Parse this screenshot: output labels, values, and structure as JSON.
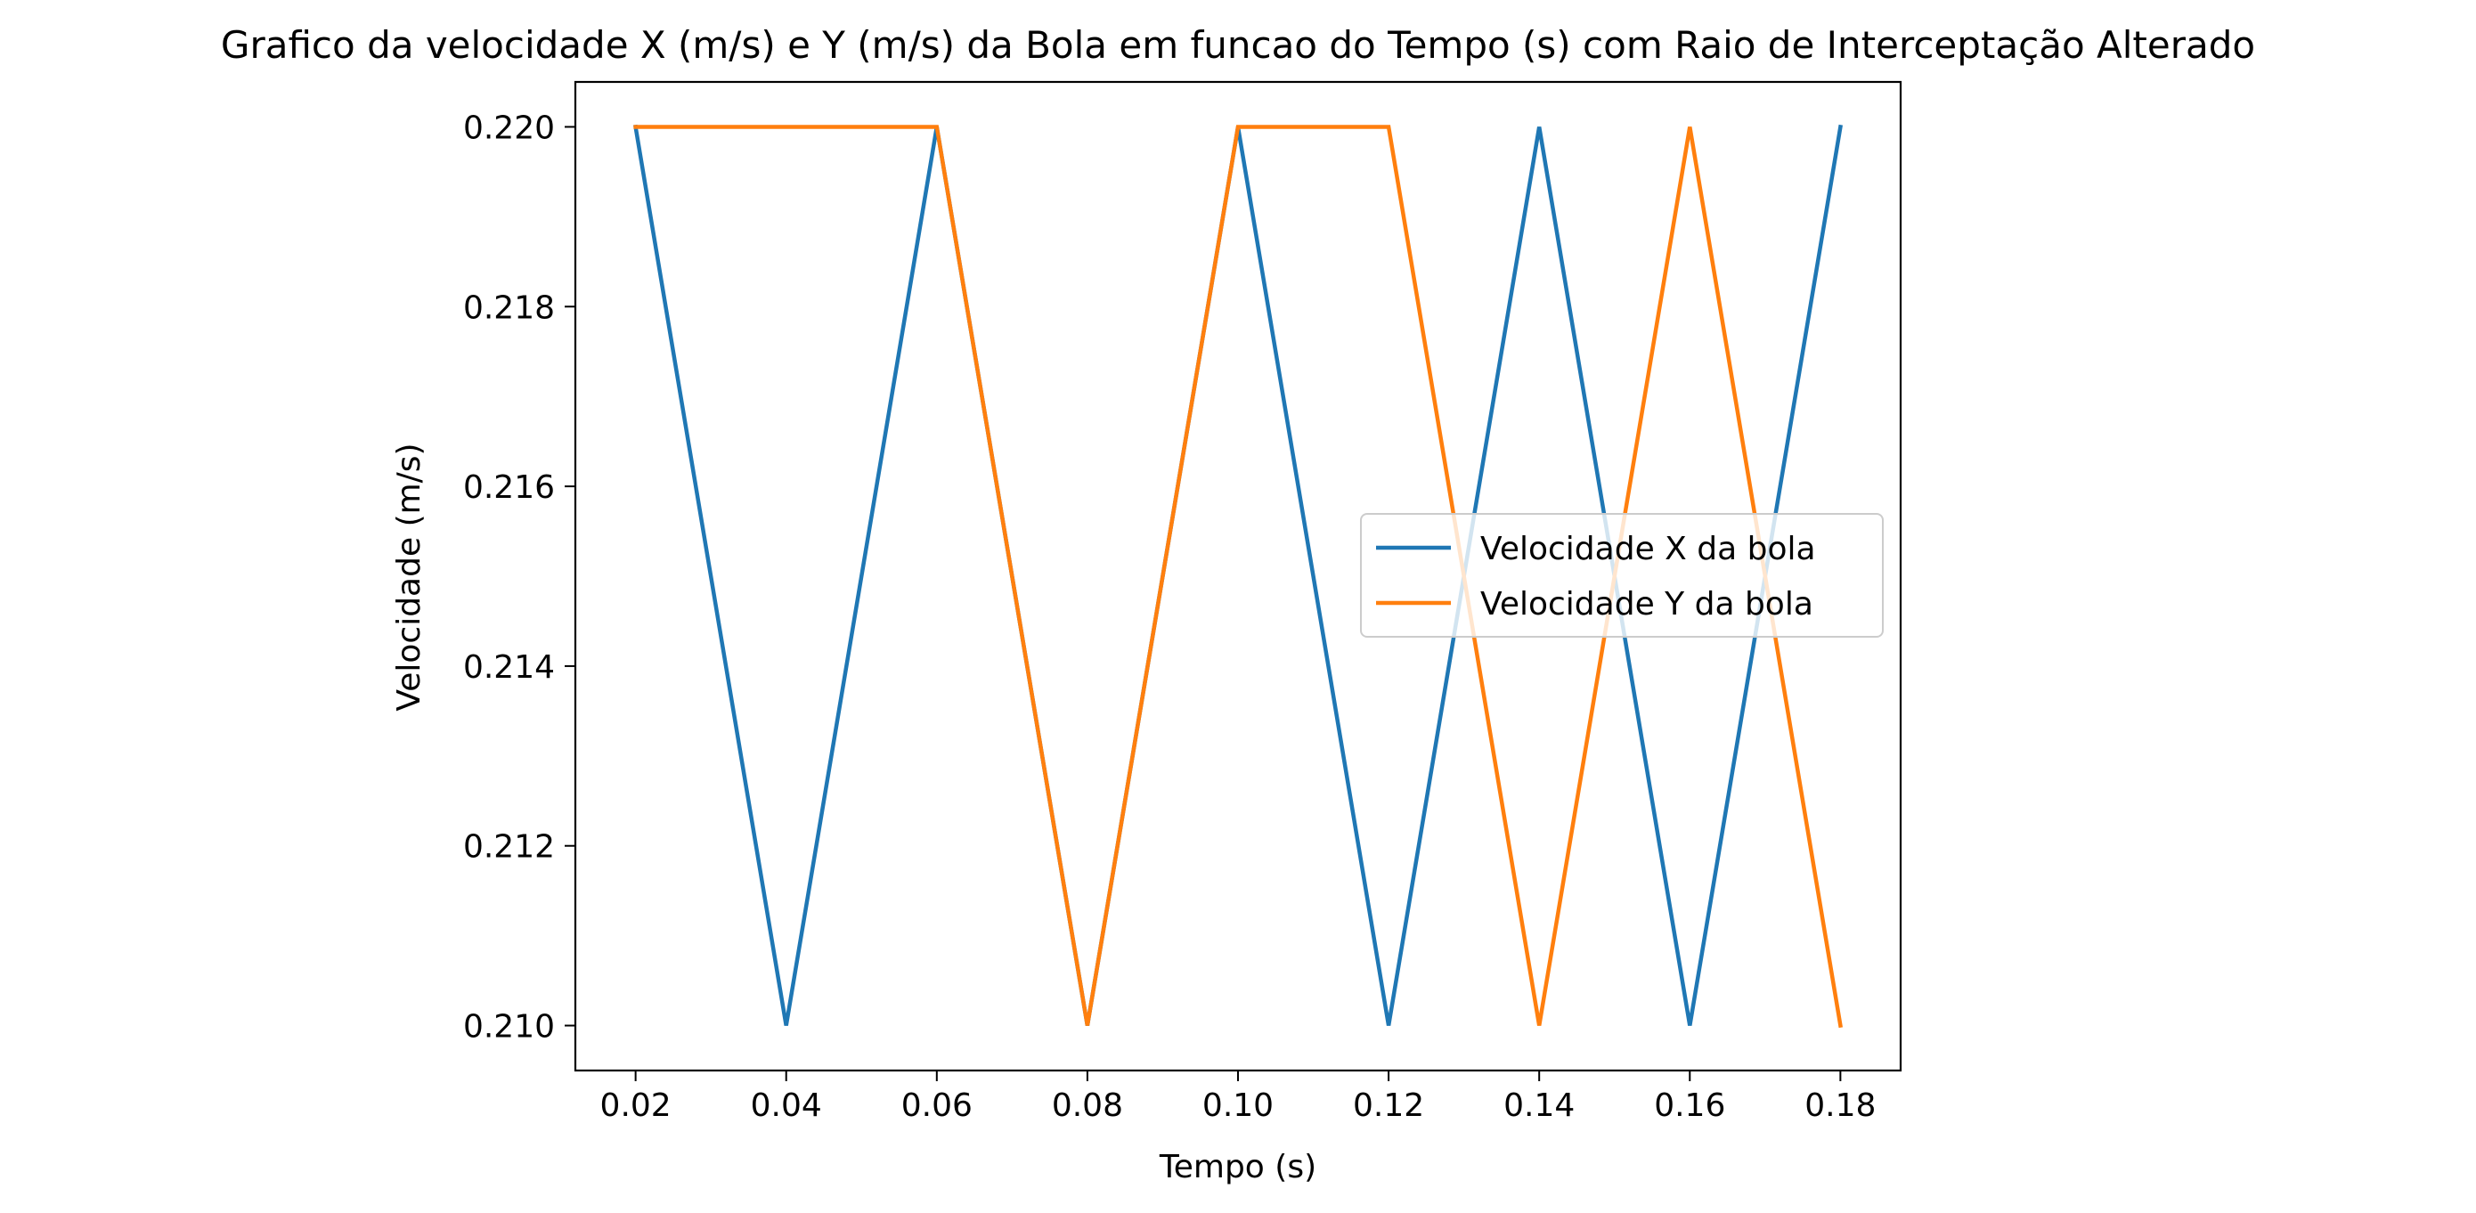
{
  "chart_data": {
    "type": "line",
    "title": "Grafico da velocidade X (m/s) e Y (m/s) da Bola em funcao do Tempo (s) com Raio de Interceptação Alterado",
    "xlabel": "Tempo (s)",
    "ylabel": "Velocidade (m/s)",
    "x": [
      0.02,
      0.04,
      0.06,
      0.08,
      0.1,
      0.12,
      0.14,
      0.16,
      0.18
    ],
    "xlim": [
      0.012,
      0.188
    ],
    "ylim": [
      0.2095,
      0.2205
    ],
    "x_ticks": [
      "0.02",
      "0.04",
      "0.06",
      "0.08",
      "0.10",
      "0.12",
      "0.14",
      "0.16",
      "0.18"
    ],
    "x_tick_values": [
      0.02,
      0.04,
      0.06,
      0.08,
      0.1,
      0.12,
      0.14,
      0.16,
      0.18
    ],
    "y_ticks": [
      "0.210",
      "0.212",
      "0.214",
      "0.216",
      "0.218",
      "0.220"
    ],
    "y_tick_values": [
      0.21,
      0.212,
      0.214,
      0.216,
      0.218,
      0.22
    ],
    "grid": false,
    "legend_position": "center-right",
    "series": [
      {
        "name": "Velocidade X da bola",
        "color": "#1f77b4",
        "values": [
          0.22,
          0.21,
          0.22,
          0.21,
          0.22,
          0.21,
          0.22,
          0.21,
          0.22
        ]
      },
      {
        "name": "Velocidade Y da bola",
        "color": "#ff7f0e",
        "values": [
          0.22,
          0.22,
          0.22,
          0.21,
          0.22,
          0.22,
          0.21,
          0.22,
          0.21
        ]
      }
    ]
  }
}
